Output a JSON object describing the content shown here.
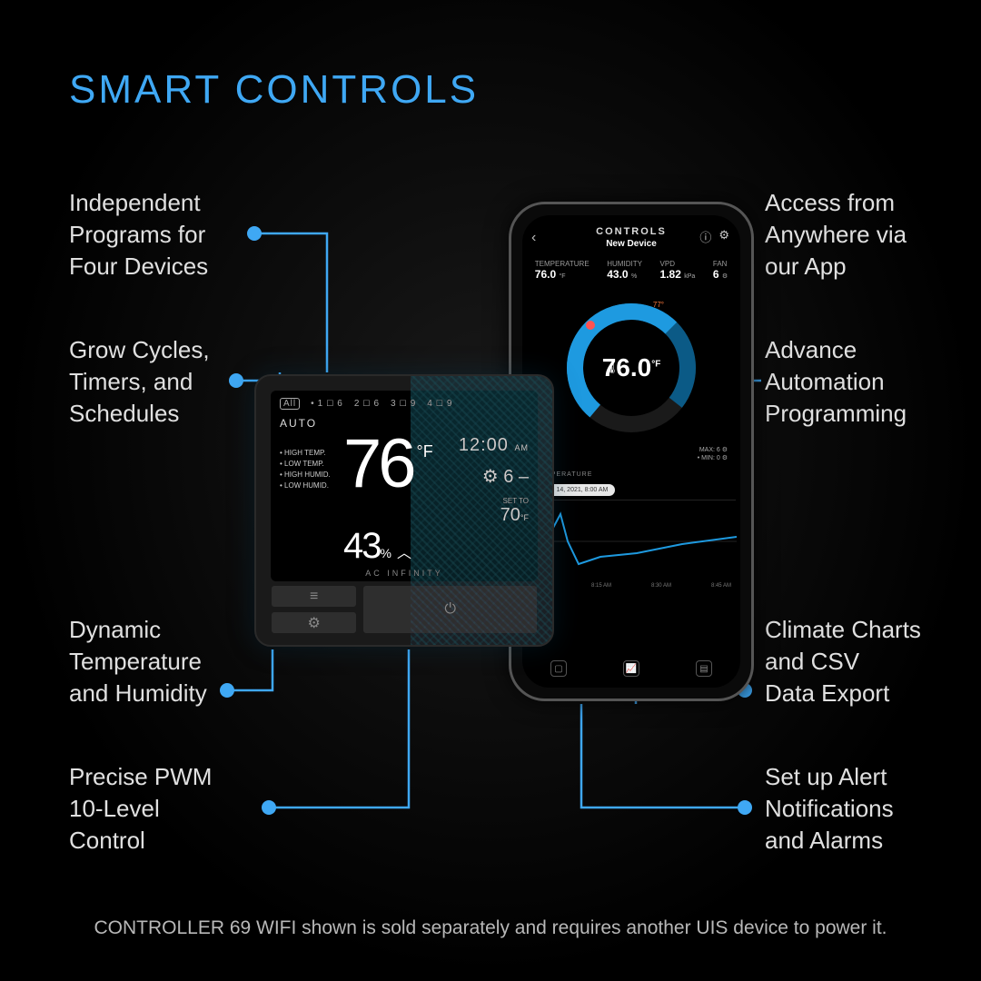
{
  "title": "SMART CONTROLS",
  "accent_color": "#3fa8f4",
  "callouts": {
    "l1": "Independent\nPrograms for\nFour Devices",
    "l2": "Grow Cycles,\nTimers, and\nSchedules",
    "l3": "Dynamic\nTemperature\nand Humidity",
    "l4": "Precise PWM\n10-Level\nControl",
    "r1": "Access from\nAnywhere via\nour App",
    "r2": "Advance\nAutomation\nProgramming",
    "r3": "Climate Charts\nand CSV\nData Export",
    "r4": "Set up Alert\nNotifications\nand Alarms"
  },
  "footnote": "CONTROLLER 69 WIFI shown is sold separately and requires another UIS device to power it.",
  "phone": {
    "header_title": "CONTROLS",
    "header_subtitle": "New Device",
    "stats": {
      "temp_label": "TEMPERATURE",
      "temp": "76.0",
      "temp_unit": "°F",
      "hum_label": "HUMIDITY",
      "hum": "43.0",
      "hum_unit": "%",
      "vpd_label": "VPD",
      "vpd": "1.82",
      "vpd_unit": "kPa",
      "fan_label": "FAN",
      "fan": "6",
      "fan_icon": "⚙"
    },
    "gauge": {
      "center_value": "76.0",
      "center_unit": "°F",
      "marker_label": "77°",
      "arc_background": "#1a1a1a",
      "arc_fill": "#1e9ae0",
      "arc_fill2": "#0b5a86",
      "max_label": "MAX: 6 ⚙",
      "min_label": "• MIN: 0 ⚙"
    },
    "chart": {
      "section_label": "TEMPERATURE",
      "date_pill": "MAR 14, 2021, 8:00 AM",
      "ticks": [
        "8:00 AM",
        "8:15 AM",
        "8:30 AM",
        "8:45 AM"
      ],
      "line_color": "#1e9ae0",
      "bg_color": "#000000",
      "points": [
        [
          0,
          60
        ],
        [
          12,
          55
        ],
        [
          20,
          80
        ],
        [
          28,
          30
        ],
        [
          36,
          15
        ],
        [
          44,
          45
        ],
        [
          56,
          70
        ],
        [
          80,
          62
        ],
        [
          120,
          58
        ],
        [
          170,
          48
        ],
        [
          230,
          40
        ]
      ]
    }
  },
  "controller": {
    "tabs": [
      "All",
      "1",
      "2",
      "3",
      "4"
    ],
    "tab_values": [
      "",
      "6",
      "6",
      "9",
      "9"
    ],
    "mode": "AUTO",
    "alarms": [
      "HIGH TEMP.",
      "LOW TEMP.",
      "HIGH HUMID.",
      "LOW HUMID."
    ],
    "temp": "76",
    "temp_unit": "°F",
    "humidity": "43",
    "humidity_unit": "%",
    "time": "12:00",
    "time_suffix": "AM",
    "level_icon": "⚙",
    "level": "6",
    "set_to_label": "SET TO",
    "set_to": "70",
    "set_to_unit": "°F",
    "brand": "AC INFINITY"
  }
}
